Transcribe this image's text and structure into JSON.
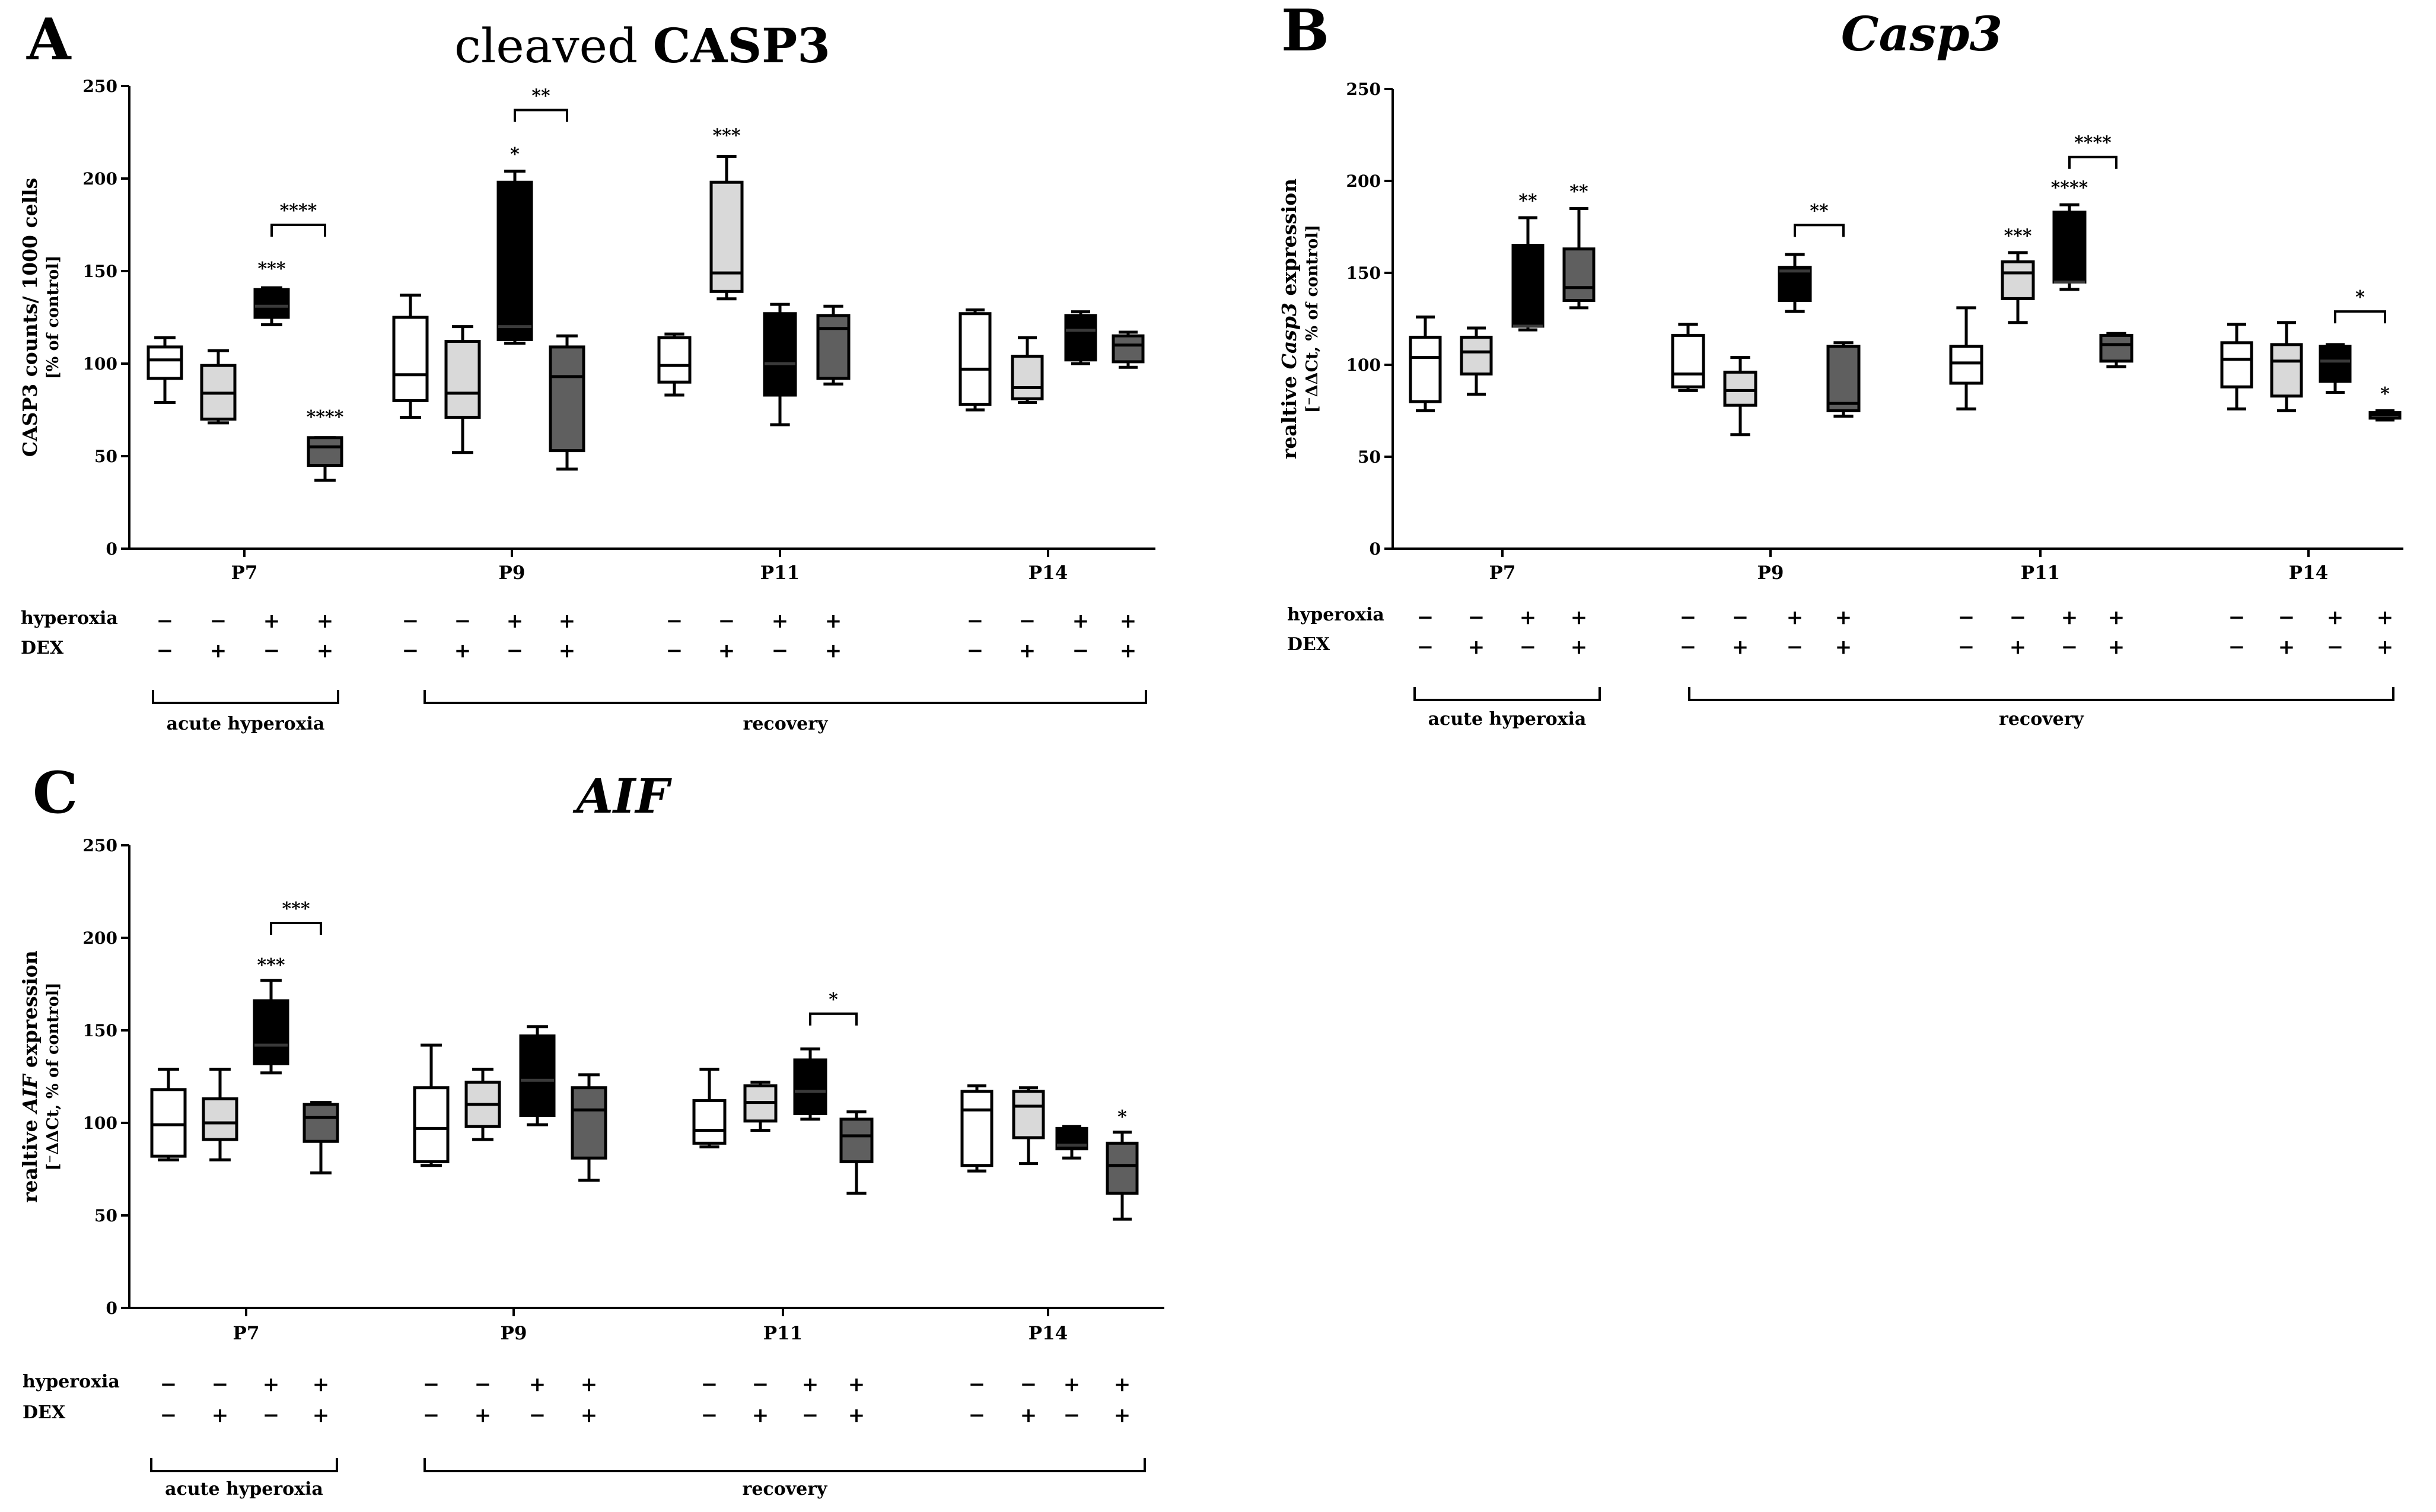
{
  "figure": {
    "colors": {
      "group1": "#ffffff",
      "group2": "#d9d9d9",
      "group3": "#000000",
      "group4": "#5f5f5f",
      "stroke": "#000000"
    },
    "factor_labels": {
      "hyperoxia": "hyperoxia",
      "dex": "DEX"
    },
    "condition_signs": {
      "hyperoxia": [
        "−",
        "−",
        "+",
        "+"
      ],
      "dex": [
        "−",
        "+",
        "−",
        "+"
      ]
    },
    "brace_labels": {
      "acute": "acute hyperoxia",
      "recovery": "recovery"
    }
  },
  "chart_data": [
    {
      "id": "A",
      "letter": "A",
      "type": "box",
      "title_plain": "cleaved ",
      "title_bold": "CASP3",
      "title_italic": false,
      "ylabel_line1": "CASP3 counts/ 1000 cells",
      "ylabel_line2": "[% of control]",
      "ylim": [
        0,
        250
      ],
      "yticks": [
        0,
        50,
        100,
        150,
        200,
        250
      ],
      "categories": [
        "P7",
        "P9",
        "P11",
        "P14"
      ],
      "boxes": [
        [
          {
            "min": 79,
            "q1": 92,
            "med": 102,
            "q3": 109,
            "max": 114
          },
          {
            "min": 68,
            "q1": 70,
            "med": 84,
            "q3": 99,
            "max": 107
          },
          {
            "min": 121,
            "q1": 125,
            "med": 131,
            "q3": 140,
            "max": 141
          },
          {
            "min": 37,
            "q1": 45,
            "med": 55,
            "q3": 60,
            "max": 60
          }
        ],
        [
          {
            "min": 71,
            "q1": 80,
            "med": 94,
            "q3": 125,
            "max": 137
          },
          {
            "min": 52,
            "q1": 71,
            "med": 84,
            "q3": 112,
            "max": 120
          },
          {
            "min": 111,
            "q1": 113,
            "med": 120,
            "q3": 198,
            "max": 204
          },
          {
            "min": 43,
            "q1": 53,
            "med": 93,
            "q3": 109,
            "max": 115
          }
        ],
        [
          {
            "min": 83,
            "q1": 90,
            "med": 99,
            "q3": 114,
            "max": 116
          },
          {
            "min": 135,
            "q1": 139,
            "med": 149,
            "q3": 198,
            "max": 212
          },
          {
            "min": 67,
            "q1": 83,
            "med": 100,
            "q3": 127,
            "max": 132
          },
          {
            "min": 89,
            "q1": 92,
            "med": 119,
            "q3": 126,
            "max": 131
          }
        ],
        [
          {
            "min": 75,
            "q1": 78,
            "med": 97,
            "q3": 127,
            "max": 129
          },
          {
            "min": 79,
            "q1": 81,
            "med": 87,
            "q3": 104,
            "max": 114
          },
          {
            "min": 100,
            "q1": 102,
            "med": 118,
            "q3": 126,
            "max": 128
          },
          {
            "min": 98,
            "q1": 101,
            "med": 110,
            "q3": 115,
            "max": 117
          }
        ]
      ],
      "annotations": [
        {
          "text": "***",
          "cat": 0,
          "box": 2,
          "y": 148
        },
        {
          "text": "****",
          "cat": 0,
          "box": 3,
          "y": 68
        },
        {
          "text": "*",
          "cat": 1,
          "box": 2,
          "y": 210
        },
        {
          "text": "***",
          "cat": 2,
          "box": 1,
          "y": 220
        }
      ],
      "brackets": [
        {
          "text": "****",
          "cat": 0,
          "from": 2,
          "to": 3,
          "y": 175
        },
        {
          "text": "**",
          "cat": 1,
          "from": 2,
          "to": 3,
          "y": 237
        }
      ]
    },
    {
      "id": "B",
      "letter": "B",
      "type": "box",
      "title_plain": "",
      "title_bold": "Casp3",
      "title_italic": true,
      "ylabel_pre": "realtive ",
      "ylabel_italic": "Casp3",
      "ylabel_post": " expression",
      "ylabel_line2": "[⁻ΔΔCt, % of control]",
      "ylim": [
        0,
        250
      ],
      "yticks": [
        0,
        50,
        100,
        150,
        200,
        250
      ],
      "categories": [
        "P7",
        "P9",
        "P11",
        "P14"
      ],
      "boxes": [
        [
          {
            "min": 75,
            "q1": 80,
            "med": 104,
            "q3": 115,
            "max": 126
          },
          {
            "min": 84,
            "q1": 95,
            "med": 107,
            "q3": 115,
            "max": 120
          },
          {
            "min": 119,
            "q1": 121,
            "med": 121,
            "q3": 165,
            "max": 180
          },
          {
            "min": 131,
            "q1": 135,
            "med": 142,
            "q3": 163,
            "max": 185
          }
        ],
        [
          {
            "min": 86,
            "q1": 88,
            "med": 95,
            "q3": 116,
            "max": 122
          },
          {
            "min": 62,
            "q1": 78,
            "med": 86,
            "q3": 96,
            "max": 104
          },
          {
            "min": 129,
            "q1": 135,
            "med": 151,
            "q3": 153,
            "max": 160
          },
          {
            "min": 72,
            "q1": 75,
            "med": 79,
            "q3": 110,
            "max": 112
          }
        ],
        [
          {
            "min": 76,
            "q1": 90,
            "med": 101,
            "q3": 110,
            "max": 131
          },
          {
            "min": 123,
            "q1": 136,
            "med": 150,
            "q3": 156,
            "max": 161
          },
          {
            "min": 141,
            "q1": 145,
            "med": 145,
            "q3": 183,
            "max": 187
          },
          {
            "min": 99,
            "q1": 102,
            "med": 111,
            "q3": 116,
            "max": 117
          }
        ],
        [
          {
            "min": 76,
            "q1": 88,
            "med": 103,
            "q3": 112,
            "max": 122
          },
          {
            "min": 75,
            "q1": 83,
            "med": 102,
            "q3": 111,
            "max": 123
          },
          {
            "min": 85,
            "q1": 91,
            "med": 102,
            "q3": 110,
            "max": 111
          },
          {
            "min": 70,
            "q1": 71,
            "med": 73,
            "q3": 74,
            "max": 75
          }
        ]
      ],
      "annotations": [
        {
          "text": "**",
          "cat": 0,
          "box": 2,
          "y": 186
        },
        {
          "text": "**",
          "cat": 0,
          "box": 3,
          "y": 191
        },
        {
          "text": "***",
          "cat": 2,
          "box": 1,
          "y": 167
        },
        {
          "text": "****",
          "cat": 2,
          "box": 2,
          "y": 193
        },
        {
          "text": "*",
          "cat": 3,
          "box": 3,
          "y": 81
        }
      ],
      "brackets": [
        {
          "text": "**",
          "cat": 1,
          "from": 2,
          "to": 3,
          "y": 176
        },
        {
          "text": "****",
          "cat": 2,
          "from": 2,
          "to": 3,
          "y": 213
        },
        {
          "text": "*",
          "cat": 3,
          "from": 2,
          "to": 3,
          "y": 129
        }
      ]
    },
    {
      "id": "C",
      "letter": "C",
      "type": "box",
      "title_plain": "",
      "title_bold": "AIF",
      "title_italic": true,
      "ylabel_pre": "realtive ",
      "ylabel_italic": "AIF",
      "ylabel_post": " expression",
      "ylabel_line2": "[⁻ΔΔCt, % of control]",
      "ylim": [
        0,
        250
      ],
      "yticks": [
        0,
        50,
        100,
        150,
        200,
        250
      ],
      "categories": [
        "P7",
        "P9",
        "P11",
        "P14"
      ],
      "boxes": [
        [
          {
            "min": 80,
            "q1": 82,
            "med": 99,
            "q3": 118,
            "max": 129
          },
          {
            "min": 80,
            "q1": 91,
            "med": 100,
            "q3": 113,
            "max": 129
          },
          {
            "min": 127,
            "q1": 132,
            "med": 142,
            "q3": 166,
            "max": 177
          },
          {
            "min": 73,
            "q1": 90,
            "med": 103,
            "q3": 110,
            "max": 111
          }
        ],
        [
          {
            "min": 77,
            "q1": 79,
            "med": 97,
            "q3": 119,
            "max": 142
          },
          {
            "min": 91,
            "q1": 98,
            "med": 110,
            "q3": 122,
            "max": 129
          },
          {
            "min": 99,
            "q1": 104,
            "med": 123,
            "q3": 147,
            "max": 152
          },
          {
            "min": 69,
            "q1": 81,
            "med": 107,
            "q3": 119,
            "max": 126
          }
        ],
        [
          {
            "min": 87,
            "q1": 89,
            "med": 96,
            "q3": 112,
            "max": 129
          },
          {
            "min": 96,
            "q1": 101,
            "med": 111,
            "q3": 120,
            "max": 122
          },
          {
            "min": 102,
            "q1": 105,
            "med": 117,
            "q3": 134,
            "max": 140
          },
          {
            "min": 62,
            "q1": 79,
            "med": 93,
            "q3": 102,
            "max": 106
          }
        ],
        [
          {
            "min": 74,
            "q1": 77,
            "med": 107,
            "q3": 117,
            "max": 120
          },
          {
            "min": 78,
            "q1": 92,
            "med": 109,
            "q3": 117,
            "max": 119
          },
          {
            "min": 81,
            "q1": 86,
            "med": 88,
            "q3": 97,
            "max": 98
          },
          {
            "min": 48,
            "q1": 62,
            "med": 77,
            "q3": 89,
            "max": 95
          }
        ]
      ],
      "annotations": [
        {
          "text": "***",
          "cat": 0,
          "box": 2,
          "y": 182
        },
        {
          "text": "*",
          "cat": 3,
          "box": 3,
          "y": 100
        }
      ],
      "brackets": [
        {
          "text": "***",
          "cat": 0,
          "from": 2,
          "to": 3,
          "y": 208
        },
        {
          "text": "*",
          "cat": 2,
          "from": 2,
          "to": 3,
          "y": 159
        }
      ]
    }
  ]
}
